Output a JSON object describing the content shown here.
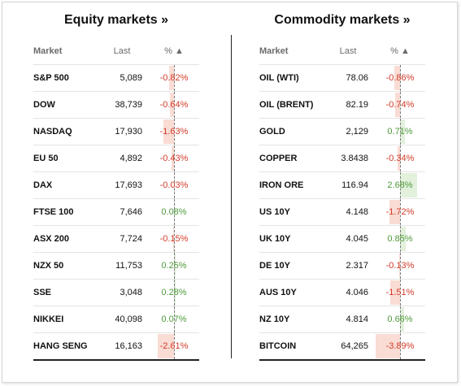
{
  "equity": {
    "title": "Equity markets »",
    "headers": {
      "market": "Market",
      "last": "Last",
      "pct": "% ▲"
    },
    "rows": [
      {
        "market": "S&P 500",
        "last": "5,089",
        "pct": "-0.82%",
        "value": -0.82
      },
      {
        "market": "DOW",
        "last": "38,739",
        "pct": "-0.64%",
        "value": -0.64
      },
      {
        "market": "NASDAQ",
        "last": "17,930",
        "pct": "-1.63%",
        "value": -1.63
      },
      {
        "market": "EU 50",
        "last": "4,892",
        "pct": "-0.43%",
        "value": -0.43
      },
      {
        "market": "DAX",
        "last": "17,693",
        "pct": "-0.03%",
        "value": -0.03
      },
      {
        "market": "FTSE 100",
        "last": "7,646",
        "pct": "0.08%",
        "value": 0.08
      },
      {
        "market": "ASX 200",
        "last": "7,724",
        "pct": "-0.15%",
        "value": -0.15
      },
      {
        "market": "NZX 50",
        "last": "11,753",
        "pct": "0.25%",
        "value": 0.25
      },
      {
        "market": "SSE",
        "last": "3,048",
        "pct": "0.28%",
        "value": 0.28
      },
      {
        "market": "NIKKEI",
        "last": "40,098",
        "pct": "0.07%",
        "value": 0.07
      },
      {
        "market": "HANG SENG",
        "last": "16,163",
        "pct": "-2.61%",
        "value": -2.61
      }
    ]
  },
  "commodity": {
    "title": "Commodity markets »",
    "headers": {
      "market": "Market",
      "last": "Last",
      "pct": "% ▲"
    },
    "rows": [
      {
        "market": "OIL (WTI)",
        "last": "78.06",
        "pct": "-0.86%",
        "value": -0.86
      },
      {
        "market": "OIL (BRENT)",
        "last": "82.19",
        "pct": "-0.74%",
        "value": -0.74
      },
      {
        "market": "GOLD",
        "last": "2,129",
        "pct": "0.71%",
        "value": 0.71
      },
      {
        "market": "COPPER",
        "last": "3.8438",
        "pct": "-0.34%",
        "value": -0.34
      },
      {
        "market": "IRON ORE",
        "last": "116.94",
        "pct": "2.68%",
        "value": 2.68
      },
      {
        "market": "US 10Y",
        "last": "4.148",
        "pct": "-1.72%",
        "value": -1.72
      },
      {
        "market": "UK 10Y",
        "last": "4.045",
        "pct": "0.85%",
        "value": 0.85
      },
      {
        "market": "DE 10Y",
        "last": "2.317",
        "pct": "-0.13%",
        "value": -0.13
      },
      {
        "market": "AUS 10Y",
        "last": "4.046",
        "pct": "-1.51%",
        "value": -1.51
      },
      {
        "market": "NZ 10Y",
        "last": "4.814",
        "pct": "0.66%",
        "value": 0.66
      },
      {
        "market": "BITCOIN",
        "last": "64,265",
        "pct": "-3.89%",
        "value": -3.89
      }
    ]
  },
  "colors": {
    "negative": "#d23b2a",
    "positive": "#4e9a3a",
    "neg_bar": "#f9dcd4",
    "pos_bar": "#e2f0dc"
  }
}
